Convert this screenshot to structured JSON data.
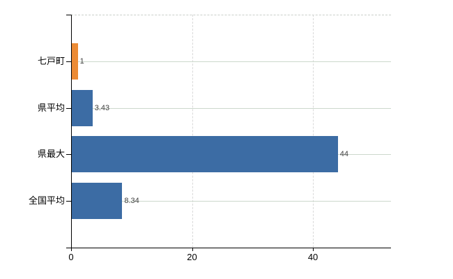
{
  "chart_data": {
    "type": "bar",
    "orientation": "horizontal",
    "title": "",
    "xlabel": "",
    "ylabel": "",
    "categories": [
      "七戸町",
      "県平均",
      "県最大",
      "全国平均"
    ],
    "values": [
      1,
      3.43,
      44,
      8.34
    ],
    "value_labels": [
      "1",
      "3.43",
      "44",
      "8.34"
    ],
    "bar_colors": [
      "#EC8B35",
      "#3C6CA4",
      "#3C6CA4",
      "#3C6CA4"
    ],
    "xlim": [
      0,
      52.9
    ],
    "xticks": [
      0,
      20,
      40
    ],
    "xtick_labels": [
      "0",
      "20",
      "40"
    ],
    "grid": true,
    "legend": false,
    "colors": {
      "bar_blue": "#3C6CA4",
      "bar_orange": "#EC8B35",
      "axis": "#000000",
      "hgrid": "#CCD8CC",
      "vgrid": "#D9D9D9",
      "top_border": "#C9CFC9",
      "value_label": "#3F3F3F",
      "tick_label": "#000000",
      "background": "#FFFFFF"
    }
  }
}
